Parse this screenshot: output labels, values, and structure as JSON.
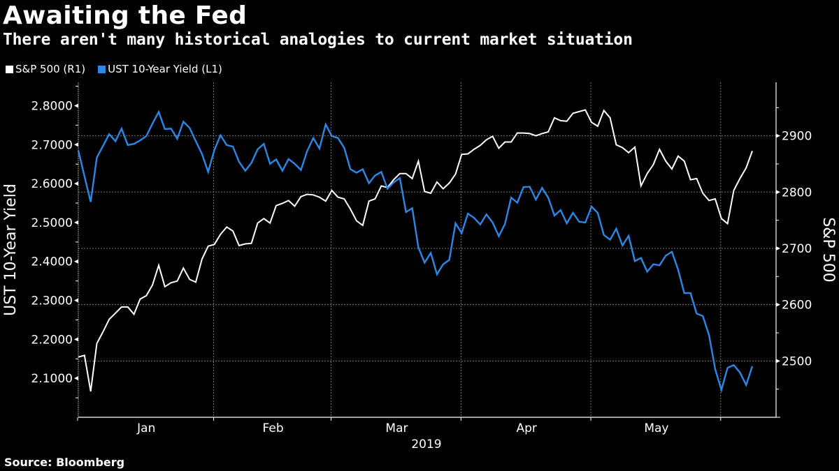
{
  "header": {
    "title": "Awaiting the Fed",
    "subtitle": "There aren't many historical analogies to current market situation"
  },
  "legend": [
    {
      "label": "S&P 500 (R1)",
      "color": "#ffffff"
    },
    {
      "label": "UST 10-Year Yield (L1)",
      "color": "#2a88e8"
    }
  ],
  "footer": {
    "source": "Source: Bloomberg"
  },
  "chart_data": {
    "type": "line",
    "title": "Awaiting the Fed",
    "subtitle": "There aren't many historical analogies to current market situation",
    "xlabel": "2019",
    "x_tick_labels": [
      "Jan",
      "Feb",
      "Mar",
      "Apr",
      "May"
    ],
    "x_month_starts": [
      0,
      22,
      41,
      62,
      83,
      104
    ],
    "x_range_trading_days": [
      0,
      110
    ],
    "grid": true,
    "legend_position": "top-left",
    "left_axis": {
      "label": "UST 10-Year Yield",
      "range": [
        2.0,
        2.86
      ],
      "ticks": [
        2.1,
        2.2,
        2.3,
        2.4,
        2.5,
        2.6,
        2.7,
        2.8
      ],
      "tick_labels": [
        "2.1000",
        "2.2000",
        "2.3000",
        "2.4000",
        "2.5000",
        "2.6000",
        "2.7000",
        "2.8000"
      ]
    },
    "right_axis": {
      "label": "S&P 500",
      "range": [
        2400,
        2995
      ],
      "ticks": [
        2500,
        2600,
        2700,
        2800,
        2900
      ],
      "tick_labels": [
        "2500",
        "2600",
        "2700",
        "2800",
        "2900"
      ]
    },
    "series": [
      {
        "name": "S&P 500 (R1)",
        "axis": "right",
        "color": "#ffffff",
        "values": [
          2507,
          2510,
          2446,
          2531,
          2552,
          2574,
          2585,
          2596,
          2596,
          2583,
          2610,
          2616,
          2635,
          2670,
          2632,
          2639,
          2642,
          2665,
          2645,
          2640,
          2681,
          2704,
          2707,
          2725,
          2738,
          2731,
          2705,
          2708,
          2709,
          2745,
          2753,
          2745,
          2776,
          2780,
          2785,
          2775,
          2792,
          2796,
          2795,
          2791,
          2784,
          2803,
          2791,
          2788,
          2770,
          2749,
          2741,
          2784,
          2788,
          2811,
          2808,
          2822,
          2833,
          2833,
          2824,
          2855,
          2801,
          2798,
          2818,
          2806,
          2816,
          2832,
          2867,
          2868,
          2876,
          2883,
          2893,
          2899,
          2878,
          2889,
          2889,
          2905,
          2905,
          2904,
          2900,
          2904,
          2907,
          2932,
          2927,
          2926,
          2940,
          2943,
          2946,
          2924,
          2917,
          2945,
          2932,
          2884,
          2879,
          2870,
          2880,
          2811,
          2833,
          2849,
          2876,
          2855,
          2841,
          2864,
          2855,
          2822,
          2824,
          2798,
          2785,
          2788,
          2753,
          2744,
          2803,
          2824,
          2843,
          2873
        ]
      },
      {
        "name": "UST 10-Year Yield (L1)",
        "axis": "left",
        "color": "#2a88e8",
        "values": [
          2.685,
          2.619,
          2.553,
          2.667,
          2.697,
          2.727,
          2.709,
          2.741,
          2.699,
          2.702,
          2.711,
          2.722,
          2.754,
          2.784,
          2.74,
          2.741,
          2.715,
          2.759,
          2.743,
          2.709,
          2.676,
          2.63,
          2.686,
          2.724,
          2.699,
          2.695,
          2.656,
          2.633,
          2.653,
          2.688,
          2.702,
          2.651,
          2.662,
          2.633,
          2.663,
          2.651,
          2.635,
          2.683,
          2.717,
          2.69,
          2.752,
          2.722,
          2.717,
          2.692,
          2.637,
          2.628,
          2.637,
          2.601,
          2.621,
          2.63,
          2.587,
          2.603,
          2.614,
          2.527,
          2.537,
          2.436,
          2.397,
          2.422,
          2.367,
          2.393,
          2.404,
          2.498,
          2.473,
          2.523,
          2.512,
          2.495,
          2.521,
          2.5,
          2.465,
          2.496,
          2.564,
          2.551,
          2.591,
          2.592,
          2.559,
          2.589,
          2.564,
          2.518,
          2.532,
          2.498,
          2.525,
          2.502,
          2.5,
          2.541,
          2.525,
          2.468,
          2.456,
          2.484,
          2.441,
          2.466,
          2.401,
          2.409,
          2.374,
          2.393,
          2.39,
          2.415,
          2.425,
          2.379,
          2.319,
          2.319,
          2.266,
          2.26,
          2.211,
          2.124,
          2.07,
          2.127,
          2.134,
          2.115,
          2.083,
          2.131
        ]
      }
    ]
  }
}
